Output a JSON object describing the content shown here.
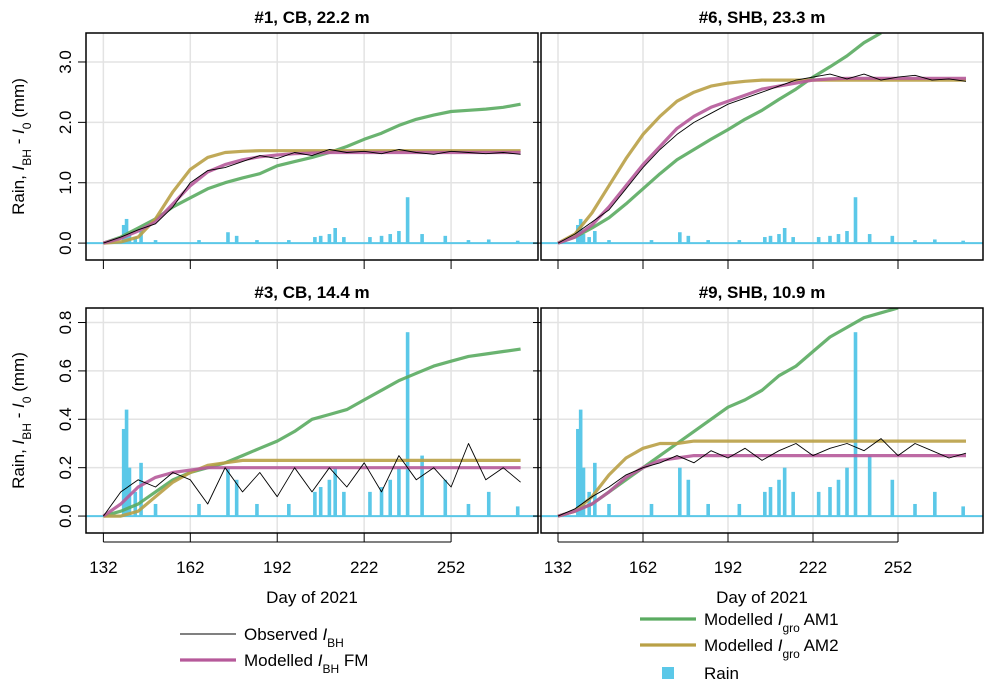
{
  "chart_data": [
    {
      "type": "line",
      "title": "#1, CB, 22.2 m",
      "y_label": [
        {
          "text": "Rain, ",
          "style": "plain"
        },
        {
          "text": "I",
          "style": "italic"
        },
        {
          "text": "BH",
          "style": "sub"
        },
        {
          "text": " - ",
          "style": "plain"
        },
        {
          "text": "I",
          "style": "italic"
        },
        {
          "text": "0",
          "style": "sub"
        },
        {
          "text": " (mm)",
          "style": "plain"
        }
      ],
      "xlim": [
        126,
        282
      ],
      "ylim": [
        -0.28,
        3.48
      ],
      "xticks": [
        132,
        162,
        192,
        222,
        252
      ],
      "yticks": [
        {
          "value": 0,
          "label": "0.0"
        },
        {
          "value": 1,
          "label": "1.0"
        },
        {
          "value": 2,
          "label": "2.0"
        },
        {
          "value": 3,
          "label": "3.0"
        }
      ],
      "grid": true,
      "x": [
        132,
        138,
        144,
        150,
        156,
        162,
        168,
        174,
        180,
        186,
        192,
        198,
        204,
        210,
        216,
        222,
        228,
        234,
        240,
        246,
        252,
        258,
        264,
        270,
        276
      ],
      "series": [
        {
          "name": [
            {
              "text": "Observed ",
              "style": "plain"
            },
            {
              "text": "I",
              "style": "italic"
            },
            {
              "text": "BH",
              "style": "sub"
            }
          ],
          "color": "#000000",
          "values": [
            0,
            0.1,
            0.22,
            0.32,
            0.6,
            1.0,
            1.2,
            1.25,
            1.35,
            1.45,
            1.4,
            1.5,
            1.45,
            1.55,
            1.5,
            1.52,
            1.48,
            1.55,
            1.5,
            1.47,
            1.52,
            1.5,
            1.48,
            1.5,
            1.47
          ]
        },
        {
          "name": [
            {
              "text": "Modelled ",
              "style": "plain"
            },
            {
              "text": "I",
              "style": "italic"
            },
            {
              "text": "BH",
              "style": "sub"
            },
            {
              "text": " FM",
              "style": "plain"
            }
          ],
          "color": "#b65a9a",
          "values": [
            0,
            0.08,
            0.2,
            0.35,
            0.65,
            0.95,
            1.18,
            1.3,
            1.38,
            1.43,
            1.46,
            1.48,
            1.49,
            1.5,
            1.5,
            1.5,
            1.5,
            1.5,
            1.5,
            1.5,
            1.5,
            1.5,
            1.5,
            1.5,
            1.5
          ]
        },
        {
          "name": [
            {
              "text": "Modelled ",
              "style": "plain"
            },
            {
              "text": "I",
              "style": "italic"
            },
            {
              "text": "gro",
              "style": "sub"
            },
            {
              "text": " AM1",
              "style": "plain"
            }
          ],
          "color": "#5aab61",
          "values": [
            0,
            0.1,
            0.25,
            0.4,
            0.6,
            0.75,
            0.9,
            1.0,
            1.08,
            1.15,
            1.28,
            1.35,
            1.42,
            1.5,
            1.6,
            1.72,
            1.82,
            1.95,
            2.05,
            2.12,
            2.18,
            2.2,
            2.22,
            2.25,
            2.3
          ]
        },
        {
          "name": [
            {
              "text": "Modelled ",
              "style": "plain"
            },
            {
              "text": "I",
              "style": "italic"
            },
            {
              "text": "gro",
              "style": "sub"
            },
            {
              "text": " AM2",
              "style": "plain"
            }
          ],
          "color": "#b9a046",
          "values": [
            0,
            0.02,
            0.1,
            0.4,
            0.85,
            1.22,
            1.42,
            1.5,
            1.52,
            1.53,
            1.53,
            1.53,
            1.53,
            1.53,
            1.53,
            1.53,
            1.53,
            1.53,
            1.53,
            1.53,
            1.53,
            1.53,
            1.53,
            1.53,
            1.53
          ]
        },
        {
          "name": [
            {
              "text": "Rain",
              "style": "plain"
            }
          ],
          "color": "#5bc8e8",
          "kind": "bar",
          "x": [
            139,
            140,
            141,
            143,
            145,
            150,
            165,
            175,
            178,
            185,
            196,
            205,
            207,
            210,
            212,
            215,
            224,
            228,
            231,
            234,
            237,
            242,
            250,
            258,
            265,
            275
          ],
          "values": [
            0.3,
            0.4,
            0.15,
            0.1,
            0.2,
            0.05,
            0.05,
            0.18,
            0.12,
            0.05,
            0.05,
            0.1,
            0.12,
            0.15,
            0.25,
            0.1,
            0.1,
            0.12,
            0.15,
            0.2,
            0.76,
            0.15,
            0.12,
            0.05,
            0.06,
            0.04
          ]
        }
      ]
    },
    {
      "type": "line",
      "title": "#6, SHB, 23.3 m",
      "xlim": [
        126,
        282
      ],
      "ylim": [
        -0.28,
        3.48
      ],
      "xticks": [
        132,
        162,
        192,
        222,
        252
      ],
      "yticks": [
        {
          "value": 0,
          "label": "0.0"
        },
        {
          "value": 1,
          "label": "1.0"
        },
        {
          "value": 2,
          "label": "2.0"
        },
        {
          "value": 3,
          "label": "3.0"
        }
      ],
      "grid": true,
      "x": [
        132,
        138,
        144,
        150,
        156,
        162,
        168,
        174,
        180,
        186,
        192,
        198,
        204,
        210,
        216,
        222,
        228,
        234,
        240,
        246,
        252,
        258,
        264,
        270,
        276
      ],
      "series": [
        {
          "color": "#000000",
          "values": [
            0,
            0.15,
            0.35,
            0.55,
            0.9,
            1.25,
            1.55,
            1.8,
            2.0,
            2.15,
            2.3,
            2.4,
            2.5,
            2.6,
            2.7,
            2.75,
            2.8,
            2.72,
            2.8,
            2.7,
            2.75,
            2.78,
            2.7,
            2.72,
            2.68
          ]
        },
        {
          "color": "#b65a9a",
          "values": [
            0,
            0.1,
            0.3,
            0.6,
            0.95,
            1.3,
            1.6,
            1.9,
            2.1,
            2.25,
            2.35,
            2.45,
            2.55,
            2.6,
            2.65,
            2.7,
            2.72,
            2.73,
            2.73,
            2.73,
            2.73,
            2.73,
            2.73,
            2.73,
            2.73
          ]
        },
        {
          "color": "#5aab61",
          "values": [
            0,
            0.1,
            0.25,
            0.42,
            0.65,
            0.9,
            1.15,
            1.38,
            1.55,
            1.72,
            1.88,
            2.05,
            2.2,
            2.38,
            2.55,
            2.75,
            2.92,
            3.1,
            3.32,
            3.48,
            null,
            null,
            null,
            null,
            null
          ]
        },
        {
          "color": "#b9a046",
          "values": [
            0,
            0.15,
            0.5,
            0.95,
            1.4,
            1.8,
            2.1,
            2.35,
            2.5,
            2.6,
            2.65,
            2.68,
            2.7,
            2.7,
            2.7,
            2.7,
            2.7,
            2.7,
            2.7,
            2.7,
            2.7,
            2.7,
            2.7,
            2.7,
            2.7
          ]
        },
        {
          "color": "#5bc8e8",
          "kind": "bar",
          "x": [
            139,
            140,
            141,
            143,
            145,
            150,
            165,
            175,
            178,
            185,
            196,
            205,
            207,
            210,
            212,
            215,
            224,
            228,
            231,
            234,
            237,
            242,
            250,
            258,
            265,
            275
          ],
          "values": [
            0.3,
            0.4,
            0.15,
            0.1,
            0.2,
            0.05,
            0.05,
            0.18,
            0.12,
            0.05,
            0.05,
            0.1,
            0.12,
            0.15,
            0.25,
            0.1,
            0.1,
            0.12,
            0.15,
            0.2,
            0.76,
            0.15,
            0.12,
            0.05,
            0.06,
            0.04
          ]
        }
      ]
    },
    {
      "type": "line",
      "title": "#3, CB, 14.4 m",
      "y_label": [
        {
          "text": "Rain, ",
          "style": "plain"
        },
        {
          "text": "I",
          "style": "italic"
        },
        {
          "text": "BH",
          "style": "sub"
        },
        {
          "text": " - ",
          "style": "plain"
        },
        {
          "text": "I",
          "style": "italic"
        },
        {
          "text": "0",
          "style": "sub"
        },
        {
          "text": " (mm)",
          "style": "plain"
        }
      ],
      "x_label": "Day of 2021",
      "xlim": [
        126,
        282
      ],
      "ylim": [
        -0.07,
        0.86
      ],
      "xticks": [
        132,
        162,
        192,
        222,
        252
      ],
      "yticks": [
        {
          "value": 0,
          "label": "0.0"
        },
        0.2,
        0.4,
        0.6,
        0.8
      ],
      "grid": true,
      "x": [
        132,
        138,
        144,
        150,
        156,
        162,
        168,
        174,
        180,
        186,
        192,
        198,
        204,
        210,
        216,
        222,
        228,
        234,
        240,
        246,
        252,
        258,
        264,
        270,
        276
      ],
      "series": [
        {
          "color": "#000000",
          "values": [
            0,
            0.1,
            0.15,
            0.12,
            0.18,
            0.15,
            0.05,
            0.2,
            0.1,
            0.18,
            0.08,
            0.2,
            0.1,
            0.2,
            0.12,
            0.22,
            0.1,
            0.25,
            0.15,
            0.2,
            0.12,
            0.3,
            0.15,
            0.2,
            0.14
          ]
        },
        {
          "color": "#b65a9a",
          "values": [
            0,
            0.05,
            0.12,
            0.16,
            0.18,
            0.19,
            0.2,
            0.2,
            0.2,
            0.2,
            0.2,
            0.2,
            0.2,
            0.2,
            0.2,
            0.2,
            0.2,
            0.2,
            0.2,
            0.2,
            0.2,
            0.2,
            0.2,
            0.2,
            0.2
          ]
        },
        {
          "color": "#5aab61",
          "values": [
            0,
            0.02,
            0.05,
            0.1,
            0.15,
            0.18,
            0.2,
            0.22,
            0.25,
            0.28,
            0.31,
            0.35,
            0.4,
            0.42,
            0.44,
            0.48,
            0.52,
            0.56,
            0.59,
            0.62,
            0.64,
            0.66,
            0.67,
            0.68,
            0.69
          ]
        },
        {
          "color": "#b9a046",
          "values": [
            0,
            0,
            0.02,
            0.08,
            0.14,
            0.18,
            0.21,
            0.22,
            0.23,
            0.23,
            0.23,
            0.23,
            0.23,
            0.23,
            0.23,
            0.23,
            0.23,
            0.23,
            0.23,
            0.23,
            0.23,
            0.23,
            0.23,
            0.23,
            0.23
          ]
        },
        {
          "color": "#5bc8e8",
          "kind": "bar",
          "x": [
            139,
            140,
            141,
            143,
            145,
            150,
            165,
            175,
            178,
            185,
            196,
            205,
            207,
            210,
            212,
            215,
            224,
            228,
            231,
            234,
            237,
            242,
            250,
            258,
            265,
            275
          ],
          "values": [
            0.36,
            0.44,
            0.2,
            0.1,
            0.22,
            0.05,
            0.05,
            0.2,
            0.15,
            0.05,
            0.05,
            0.1,
            0.12,
            0.15,
            0.2,
            0.1,
            0.1,
            0.12,
            0.15,
            0.2,
            0.76,
            0.25,
            0.15,
            0.05,
            0.1,
            0.04
          ]
        }
      ]
    },
    {
      "type": "line",
      "title": "#9, SHB, 10.9 m",
      "x_label": "Day of 2021",
      "xlim": [
        126,
        282
      ],
      "ylim": [
        -0.07,
        0.86
      ],
      "xticks": [
        132,
        162,
        192,
        222,
        252
      ],
      "yticks": [
        {
          "value": 0,
          "label": "0.0"
        },
        0.2,
        0.4,
        0.6,
        0.8
      ],
      "grid": true,
      "x": [
        132,
        138,
        144,
        150,
        156,
        162,
        168,
        174,
        180,
        186,
        192,
        198,
        204,
        210,
        216,
        222,
        228,
        234,
        240,
        246,
        252,
        258,
        264,
        270,
        276
      ],
      "series": [
        {
          "color": "#000000",
          "values": [
            0,
            0.03,
            0.08,
            0.12,
            0.17,
            0.2,
            0.22,
            0.25,
            0.22,
            0.27,
            0.24,
            0.28,
            0.23,
            0.27,
            0.3,
            0.25,
            0.28,
            0.3,
            0.27,
            0.32,
            0.25,
            0.3,
            0.27,
            0.24,
            0.26
          ]
        },
        {
          "color": "#b65a9a",
          "values": [
            0,
            0.02,
            0.05,
            0.1,
            0.16,
            0.2,
            0.23,
            0.24,
            0.25,
            0.25,
            0.25,
            0.25,
            0.25,
            0.25,
            0.25,
            0.25,
            0.25,
            0.25,
            0.25,
            0.25,
            0.25,
            0.25,
            0.25,
            0.25,
            0.25
          ]
        },
        {
          "color": "#5aab61",
          "values": [
            0,
            0.02,
            0.05,
            0.1,
            0.15,
            0.2,
            0.25,
            0.3,
            0.35,
            0.4,
            0.45,
            0.48,
            0.52,
            0.58,
            0.62,
            0.68,
            0.74,
            0.78,
            0.82,
            0.84,
            0.86,
            null,
            null,
            null,
            null
          ]
        },
        {
          "color": "#b9a046",
          "values": [
            0,
            0.02,
            0.08,
            0.17,
            0.24,
            0.28,
            0.3,
            0.3,
            0.31,
            0.31,
            0.31,
            0.31,
            0.31,
            0.31,
            0.31,
            0.31,
            0.31,
            0.31,
            0.31,
            0.31,
            0.31,
            0.31,
            0.31,
            0.31,
            0.31
          ]
        },
        {
          "color": "#5bc8e8",
          "kind": "bar",
          "x": [
            139,
            140,
            141,
            143,
            145,
            150,
            165,
            175,
            178,
            185,
            196,
            205,
            207,
            210,
            212,
            215,
            224,
            228,
            231,
            234,
            237,
            242,
            250,
            258,
            265,
            275
          ],
          "values": [
            0.36,
            0.44,
            0.2,
            0.1,
            0.22,
            0.05,
            0.05,
            0.2,
            0.15,
            0.05,
            0.05,
            0.1,
            0.12,
            0.15,
            0.2,
            0.1,
            0.1,
            0.12,
            0.15,
            0.2,
            0.76,
            0.25,
            0.15,
            0.05,
            0.1,
            0.04
          ]
        }
      ]
    }
  ]
}
